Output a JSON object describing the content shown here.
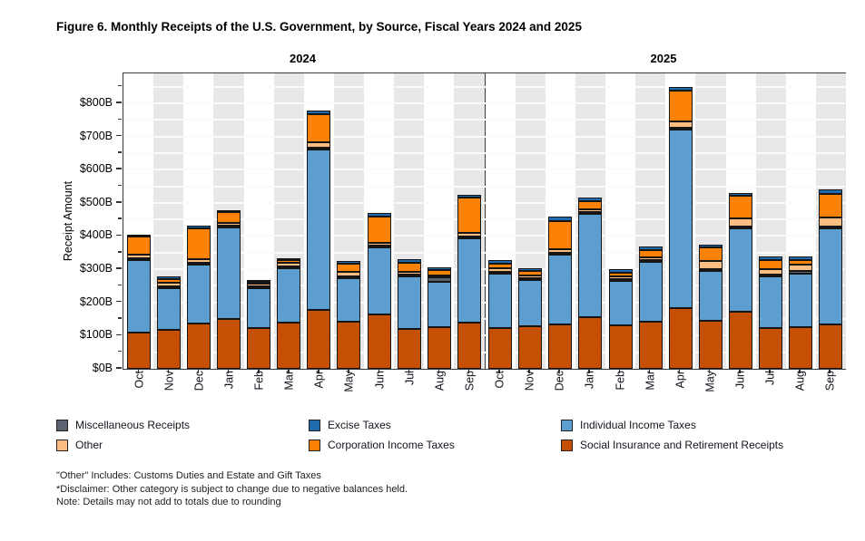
{
  "title": "Figure 6. Monthly Receipts of the U.S. Government, by Source, Fiscal Years 2024 and 2025",
  "y_axis": {
    "label": "Receipt Amount",
    "tick_labels": [
      "$0B",
      "$100B",
      "$200B",
      "$300B",
      "$400B",
      "$500B",
      "$600B",
      "$700B",
      "$800B"
    ]
  },
  "colors": {
    "social": "#C55004",
    "individual": "#5C9ECE",
    "misc": "#5C6270",
    "other": "#FBBE82",
    "corp": "#FC8205",
    "excise": "#1F6BAE",
    "stripe": "#E8E8E8",
    "frame": "#3A3A3A"
  },
  "legend": {
    "columns": [
      [
        {
          "series": "misc",
          "label": "Miscellaneous Receipts"
        },
        {
          "series": "other",
          "label": "Other"
        }
      ],
      [
        {
          "series": "excise",
          "label": "Excise Taxes"
        },
        {
          "series": "corp",
          "label": "Corporation Income Taxes"
        }
      ],
      [
        {
          "series": "individual",
          "label": "Individual Income Taxes"
        },
        {
          "series": "social",
          "label": "Social Insurance and Retirement Receipts"
        }
      ]
    ]
  },
  "footnotes": [
    "\"Other\" Includes: Customs Duties and Estate and Gift Taxes",
    "*Disclaimer: Other category is subject to change due to negative balances held.",
    "Note: Details may not add to totals due to rounding"
  ],
  "chart_data": {
    "type": "bar",
    "stacked": true,
    "title": "Figure 6. Monthly Receipts of the U.S. Government, by Source, Fiscal Years 2024 and 2025",
    "xlabel": "",
    "ylabel": "Receipt Amount",
    "unit": "$ billions",
    "ylim": [
      0,
      890
    ],
    "ytick_interval": 100,
    "gridlines_every": 50,
    "legend_position": "bottom",
    "stack_order": [
      "social",
      "individual",
      "misc",
      "other",
      "corp",
      "excise"
    ],
    "categories": [
      "Oct",
      "Nov",
      "Dec",
      "Jan",
      "Feb",
      "Mar",
      "Apr",
      "May",
      "Jun",
      "Jul",
      "Aug",
      "Sep"
    ],
    "panels": [
      {
        "label": "2024",
        "series": [
          {
            "key": "social",
            "name": "Social Insurance and Retirement Receipts",
            "values": [
              110,
              117,
              137,
              150,
              122,
              140,
              178,
              142,
              165,
              119,
              126,
              140
            ]
          },
          {
            "key": "individual",
            "name": "Individual Income Taxes",
            "values": [
              219,
              127,
              178,
              276,
              120,
              163,
              482,
              132,
              200,
              160,
              136,
              253
            ]
          },
          {
            "key": "misc",
            "name": "Miscellaneous Receipts",
            "values": [
              2,
              2,
              2,
              3,
              2,
              2,
              2,
              2,
              2,
              3,
              15,
              2
            ]
          },
          {
            "key": "other",
            "name": "Other",
            "values": [
              11,
              10,
              10,
              9,
              8,
              10,
              16,
              13,
              9,
              9,
              5,
              12
            ]
          },
          {
            "key": "corp",
            "name": "Corporation Income Taxes",
            "values": [
              52,
              10,
              94,
              31,
              6,
              9,
              85,
              24,
              80,
              25,
              15,
              105
            ]
          },
          {
            "key": "excise",
            "name": "Excise Taxes",
            "values": [
              8,
              8,
              8,
              7,
              7,
              7,
              12,
              9,
              9,
              12,
              9,
              10
            ]
          }
        ],
        "totals": [
          402,
          274,
          429,
          476,
          265,
          331,
          775,
          322,
          465,
          328,
          306,
          522
        ]
      },
      {
        "label": "2025",
        "series": [
          {
            "key": "social",
            "name": "Social Insurance and Retirement Receipts",
            "values": [
              123,
              127,
              134,
              156,
              130,
              141,
              183,
              146,
              172,
              123,
              126,
              135
            ]
          },
          {
            "key": "individual",
            "name": "Individual Income Taxes",
            "values": [
              165,
              140,
              210,
              310,
              134,
              182,
              537,
              148,
              250,
              155,
              160,
              288
            ]
          },
          {
            "key": "misc",
            "name": "Miscellaneous Receipts",
            "values": [
              3,
              2,
              2,
              3,
              2,
              2,
              3,
              2,
              2,
              3,
              9,
              3
            ]
          },
          {
            "key": "other",
            "name": "Other",
            "values": [
              11,
              10,
              12,
              9,
              9,
              8,
              19,
              25,
              25,
              17,
              19,
              27
            ]
          },
          {
            "key": "corp",
            "name": "Corporation Income Taxes",
            "values": [
              13,
              12,
              85,
              24,
              12,
              21,
              94,
              41,
              68,
              28,
              14,
              72
            ]
          },
          {
            "key": "excise",
            "name": "Excise Taxes",
            "values": [
              11,
              10,
              11,
              12,
              9,
              10,
              12,
              9,
              10,
              9,
              11,
              12
            ]
          }
        ],
        "totals": [
          326,
          301,
          454,
          514,
          296,
          364,
          848,
          371,
          527,
          335,
          339,
          537
        ]
      }
    ]
  }
}
